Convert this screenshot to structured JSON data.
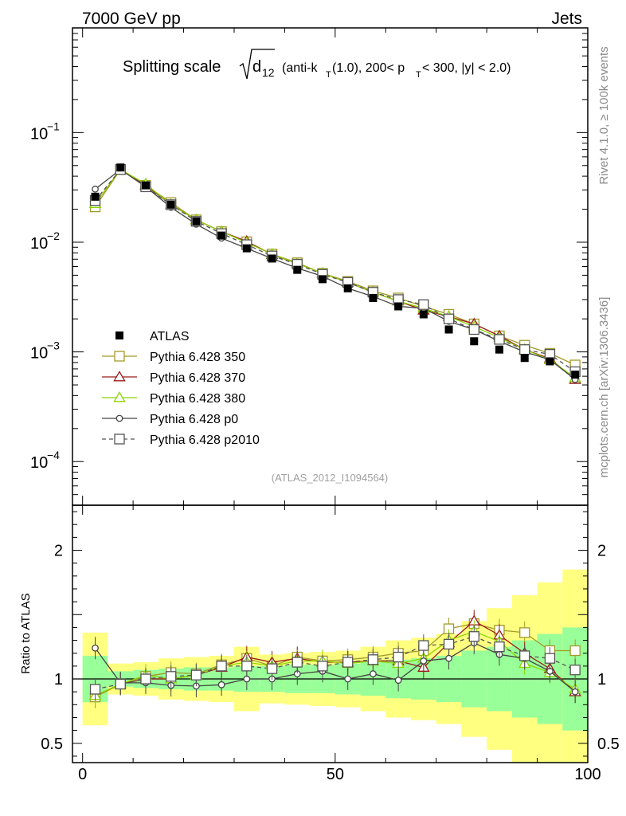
{
  "header": {
    "energy_label": "7000 GeV pp",
    "process_label": "Jets"
  },
  "side_labels": {
    "rivet": "Rivet 4.1.0, ≥ 100k events",
    "mcplots": "mcplots.cern.ch [arXiv:1306.3436]"
  },
  "chart_data": {
    "type": "line",
    "title": "Splitting scale √d₁₂ (anti-k_T(1.0), 200< p_T < 300, |y| < 2.0)",
    "title_parts": {
      "main": "Splitting scale",
      "var": "d",
      "var_sub": "12",
      "a": "(anti-k",
      "a_sub": "T",
      "b": "(1.0), 200< p",
      "b_sub": "T",
      "c": " < 300, |y| < 2.0)"
    },
    "analysis_id": "(ATLAS_2012_I1094564)",
    "xlabel": "",
    "ylabel_ratio": "Ratio to ATLAS",
    "xlim": [
      -2,
      100
    ],
    "ylim_main": [
      4e-05,
      0.9
    ],
    "ylim_ratio": [
      0.35,
      2.35
    ],
    "x_ticks": [
      0,
      50,
      100
    ],
    "y_ticks_main": [
      {
        "v": 0.1,
        "base": "10",
        "exp": "−1"
      },
      {
        "v": 0.01,
        "base": "10",
        "exp": "−2"
      },
      {
        "v": 0.001,
        "base": "10",
        "exp": "−3"
      },
      {
        "v": 0.0001,
        "base": "10",
        "exp": "−4"
      }
    ],
    "y_ticks_ratio": [
      {
        "v": 0.5,
        "label": "0.5"
      },
      {
        "v": 1,
        "label": "1"
      },
      {
        "v": 2,
        "label": "2"
      }
    ],
    "x": [
      2.5,
      7.5,
      12.5,
      17.5,
      22.5,
      27.5,
      32.5,
      37.5,
      42.5,
      47.5,
      52.5,
      57.5,
      62.5,
      67.5,
      72.5,
      77.5,
      82.5,
      87.5,
      92.5,
      97.5
    ],
    "bin_edges": [
      0,
      5,
      10,
      15,
      20,
      25,
      30,
      35,
      40,
      45,
      50,
      55,
      60,
      65,
      70,
      75,
      80,
      85,
      90,
      95,
      100
    ],
    "data": {
      "name": "ATLAS",
      "values": [
        0.026,
        0.048,
        0.033,
        0.022,
        0.0155,
        0.0115,
        0.0088,
        0.0071,
        0.0056,
        0.0046,
        0.0038,
        0.0031,
        0.0026,
        0.0022,
        0.0016,
        0.00125,
        0.00105,
        0.00088,
        0.00082,
        0.00062
      ],
      "band_green": [
        0.18,
        0.06,
        0.07,
        0.08,
        0.09,
        0.09,
        0.1,
        0.1,
        0.11,
        0.11,
        0.12,
        0.13,
        0.15,
        0.16,
        0.18,
        0.22,
        0.25,
        0.3,
        0.35,
        0.4
      ],
      "band_yellow": [
        0.36,
        0.12,
        0.13,
        0.16,
        0.17,
        0.18,
        0.25,
        0.19,
        0.2,
        0.21,
        0.22,
        0.25,
        0.3,
        0.32,
        0.35,
        0.45,
        0.55,
        0.65,
        0.75,
        0.85
      ]
    },
    "series": [
      {
        "name": "Pythia 6.428 350",
        "color": "#a39a2a",
        "marker": "square-open",
        "dash": "solid",
        "values": [
          0.021,
          0.046,
          0.033,
          0.023,
          0.016,
          0.0125,
          0.0101,
          0.0078,
          0.0065,
          0.0052,
          0.0044,
          0.0036,
          0.0031,
          0.0026,
          0.0022,
          0.0018,
          0.0014,
          0.00115,
          0.00097,
          0.00076
        ]
      },
      {
        "name": "Pythia 6.428 370",
        "color": "#9b1a1a",
        "marker": "triangle-open",
        "dash": "solid",
        "values": [
          0.0225,
          0.046,
          0.033,
          0.022,
          0.016,
          0.0125,
          0.0102,
          0.0077,
          0.0064,
          0.0052,
          0.0043,
          0.0035,
          0.0029,
          0.0024,
          0.0021,
          0.0018,
          0.0014,
          0.00105,
          0.00087,
          0.00056
        ]
      },
      {
        "name": "Pythia 6.428 380",
        "color": "#8cd600",
        "marker": "triangle-open",
        "dash": "solid",
        "values": [
          0.0225,
          0.046,
          0.034,
          0.022,
          0.016,
          0.0125,
          0.0099,
          0.0078,
          0.0064,
          0.0052,
          0.0043,
          0.0035,
          0.0029,
          0.0025,
          0.0021,
          0.0017,
          0.00135,
          0.00105,
          0.00085,
          0.00058
        ]
      },
      {
        "name": "Pythia 6.428 p0",
        "color": "#444444",
        "marker": "circle-open",
        "dash": "solid",
        "values": [
          0.0305,
          0.046,
          0.032,
          0.0208,
          0.0146,
          0.0109,
          0.0088,
          0.0071,
          0.0058,
          0.0049,
          0.0038,
          0.0032,
          0.0026,
          0.0025,
          0.0019,
          0.0016,
          0.00125,
          0.001,
          0.00085,
          0.00056
        ]
      },
      {
        "name": "Pythia 6.428 p2010",
        "color": "#555555",
        "marker": "square-open",
        "dash": "dashed",
        "values": [
          0.024,
          0.046,
          0.032,
          0.022,
          0.0155,
          0.012,
          0.0095,
          0.0075,
          0.0063,
          0.0051,
          0.0043,
          0.0035,
          0.003,
          0.0027,
          0.002,
          0.0016,
          0.0013,
          0.00105,
          0.00095,
          0.00066
        ]
      }
    ],
    "ratios": [
      [
        0.86,
        0.96,
        1.02,
        1.05,
        1.04,
        1.11,
        1.16,
        1.1,
        1.17,
        1.14,
        1.15,
        1.17,
        1.2,
        1.22,
        1.39,
        1.43,
        1.38,
        1.36,
        1.22,
        1.22
      ],
      [
        0.87,
        0.96,
        1.0,
        1.0,
        1.03,
        1.09,
        1.17,
        1.13,
        1.16,
        1.13,
        1.13,
        1.14,
        1.14,
        1.09,
        1.28,
        1.45,
        1.34,
        1.2,
        1.08,
        0.9
      ],
      [
        0.87,
        0.96,
        1.03,
        1.0,
        1.03,
        1.1,
        1.13,
        1.1,
        1.14,
        1.14,
        1.12,
        1.14,
        1.12,
        1.16,
        1.3,
        1.37,
        1.29,
        1.12,
        1.05,
        0.92
      ],
      [
        1.24,
        0.97,
        0.97,
        0.95,
        0.945,
        0.955,
        1.0,
        1.0,
        1.04,
        1.06,
        1.0,
        1.04,
        0.99,
        1.14,
        1.16,
        1.28,
        1.19,
        1.16,
        1.06,
        0.9
      ],
      [
        0.92,
        0.96,
        1.0,
        1.02,
        1.03,
        1.1,
        1.1,
        1.08,
        1.13,
        1.1,
        1.13,
        1.15,
        1.17,
        1.26,
        1.27,
        1.33,
        1.25,
        1.18,
        1.16,
        1.07
      ]
    ]
  }
}
